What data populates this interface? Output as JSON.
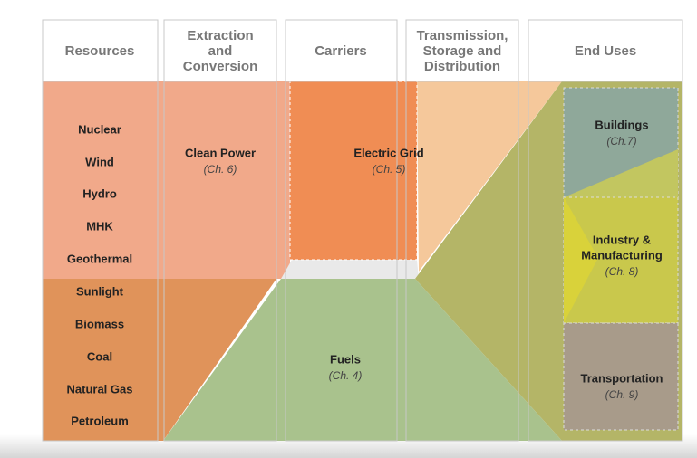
{
  "columns": [
    {
      "lines": [
        "Resources"
      ]
    },
    {
      "lines": [
        "Extraction",
        "and",
        "Conversion"
      ]
    },
    {
      "lines": [
        "Carriers"
      ]
    },
    {
      "lines": [
        "Transmission,",
        "Storage and",
        "Distribution"
      ]
    },
    {
      "lines": [
        "End Uses"
      ]
    }
  ],
  "resources": [
    "Nuclear",
    "Wind",
    "Hydro",
    "MHK",
    "Geothermal",
    "Sunlight",
    "Biomass",
    "Coal",
    "Natural Gas",
    "Petroleum"
  ],
  "regions": [
    {
      "lines": [
        "Clean Power"
      ],
      "ref": "(Ch. 6)"
    },
    {
      "lines": [
        "Electric Grid"
      ],
      "ref": "(Ch. 5)"
    },
    {
      "lines": [
        "Fuels"
      ],
      "ref": "(Ch. 4)"
    },
    {
      "lines": [
        "Buildings"
      ],
      "ref": "(Ch.7)"
    },
    {
      "lines": [
        "Industry &",
        "Manufacturing"
      ],
      "ref": "(Ch. 8)"
    },
    {
      "lines": [
        "Transportation"
      ],
      "ref": "(Ch. 9)"
    }
  ]
}
